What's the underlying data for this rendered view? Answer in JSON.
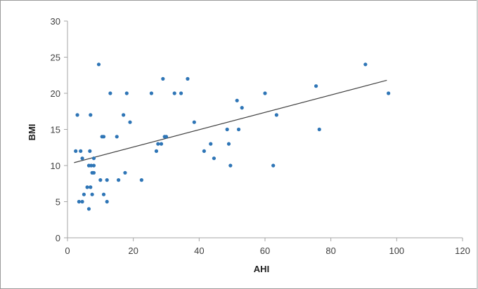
{
  "chart_data": {
    "type": "scatter",
    "title": "",
    "xlabel": "AHI",
    "ylabel": "BMI",
    "xlim": [
      0,
      120
    ],
    "ylim": [
      0,
      30
    ],
    "x_ticks": [
      0,
      20,
      40,
      60,
      80,
      100,
      120
    ],
    "y_ticks": [
      0,
      5,
      10,
      15,
      20,
      25,
      30
    ],
    "grid": false,
    "legend": "none",
    "marker_color": "#2e75b6",
    "trendline": {
      "type": "linear",
      "x": [
        2,
        97
      ],
      "y": [
        10.4,
        21.8
      ],
      "color": "#404040"
    },
    "points": [
      [
        2.5,
        12
      ],
      [
        3,
        17
      ],
      [
        3.5,
        5
      ],
      [
        4,
        12
      ],
      [
        4.5,
        5
      ],
      [
        4.5,
        11
      ],
      [
        5,
        6
      ],
      [
        6,
        7
      ],
      [
        6.5,
        4
      ],
      [
        6.5,
        10
      ],
      [
        6.8,
        12
      ],
      [
        7,
        17
      ],
      [
        7,
        7
      ],
      [
        7.2,
        10
      ],
      [
        7.5,
        9
      ],
      [
        7.5,
        6
      ],
      [
        8,
        11
      ],
      [
        8,
        10
      ],
      [
        8,
        9
      ],
      [
        9.5,
        24
      ],
      [
        10,
        8
      ],
      [
        10.5,
        14
      ],
      [
        11,
        6
      ],
      [
        11,
        14
      ],
      [
        12,
        5
      ],
      [
        12,
        8
      ],
      [
        13,
        20
      ],
      [
        15,
        14
      ],
      [
        15.5,
        8
      ],
      [
        17,
        17
      ],
      [
        17.5,
        9
      ],
      [
        18,
        20
      ],
      [
        19,
        16
      ],
      [
        22.5,
        8
      ],
      [
        25.5,
        20
      ],
      [
        27,
        12
      ],
      [
        27.5,
        13
      ],
      [
        28.5,
        13
      ],
      [
        29,
        22
      ],
      [
        29.5,
        14
      ],
      [
        30,
        14
      ],
      [
        32.5,
        20
      ],
      [
        34.5,
        20
      ],
      [
        36.5,
        22
      ],
      [
        38.5,
        16
      ],
      [
        41.5,
        12
      ],
      [
        43.5,
        13
      ],
      [
        44.5,
        11
      ],
      [
        48.5,
        15
      ],
      [
        49,
        13
      ],
      [
        49.5,
        10
      ],
      [
        51.5,
        19
      ],
      [
        52,
        15
      ],
      [
        53,
        18
      ],
      [
        60,
        20
      ],
      [
        62.5,
        10
      ],
      [
        63.5,
        17
      ],
      [
        75.5,
        21
      ],
      [
        76.5,
        15
      ],
      [
        90.5,
        24
      ],
      [
        97.5,
        20
      ]
    ]
  }
}
